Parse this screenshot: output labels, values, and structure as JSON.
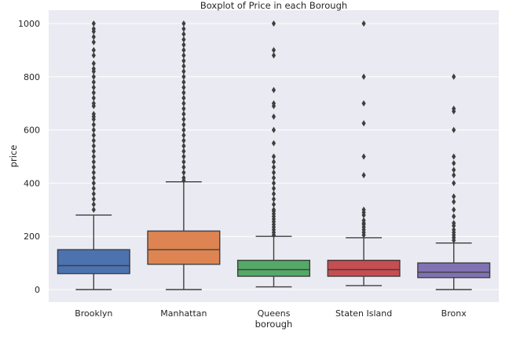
{
  "chart_data": {
    "type": "boxplot",
    "title": "Boxplot of Price in each Borough",
    "xlabel": "borough",
    "ylabel": "price",
    "ylim": [
      -50,
      1040
    ],
    "yticks": [
      0,
      200,
      400,
      600,
      800,
      1000
    ],
    "grid": true,
    "series": [
      {
        "name": "Brooklyn",
        "color": "#4c72b0",
        "whisker_low": 0,
        "q1": 60,
        "median": 90,
        "q3": 150,
        "whisker_high": 280,
        "outliers": [
          300,
          320,
          340,
          360,
          380,
          400,
          420,
          440,
          460,
          480,
          500,
          520,
          540,
          560,
          580,
          600,
          620,
          640,
          650,
          660,
          690,
          700,
          720,
          740,
          760,
          780,
          800,
          820,
          830,
          850,
          880,
          900,
          930,
          950,
          970,
          980,
          1000
        ]
      },
      {
        "name": "Manhattan",
        "color": "#dd8452",
        "whisker_low": 0,
        "q1": 95,
        "median": 150,
        "q3": 220,
        "whisker_high": 405,
        "outliers": [
          410,
          420,
          440,
          460,
          480,
          500,
          520,
          540,
          560,
          580,
          600,
          620,
          640,
          660,
          680,
          700,
          720,
          740,
          760,
          780,
          800,
          820,
          840,
          860,
          880,
          900,
          920,
          940,
          960,
          980,
          1000
        ]
      },
      {
        "name": "Queens",
        "color": "#55a868",
        "whisker_low": 10,
        "q1": 50,
        "median": 75,
        "q3": 110,
        "whisker_high": 200,
        "outliers": [
          205,
          215,
          225,
          235,
          245,
          255,
          265,
          275,
          285,
          295,
          300,
          320,
          340,
          360,
          380,
          400,
          420,
          440,
          460,
          480,
          500,
          550,
          600,
          650,
          690,
          700,
          750,
          880,
          900,
          1000
        ]
      },
      {
        "name": "Staten Island",
        "color": "#c44e52",
        "whisker_low": 15,
        "q1": 50,
        "median": 75,
        "q3": 110,
        "whisker_high": 195,
        "outliers": [
          205,
          215,
          225,
          235,
          245,
          250,
          260,
          280,
          290,
          300,
          430,
          500,
          625,
          700,
          800,
          1000
        ]
      },
      {
        "name": "Bronx",
        "color": "#8172b3",
        "whisker_low": 0,
        "q1": 45,
        "median": 65,
        "q3": 100,
        "whisker_high": 175,
        "outliers": [
          185,
          195,
          205,
          215,
          225,
          240,
          250,
          275,
          300,
          330,
          350,
          400,
          430,
          450,
          475,
          500,
          600,
          670,
          680,
          800
        ]
      }
    ]
  }
}
